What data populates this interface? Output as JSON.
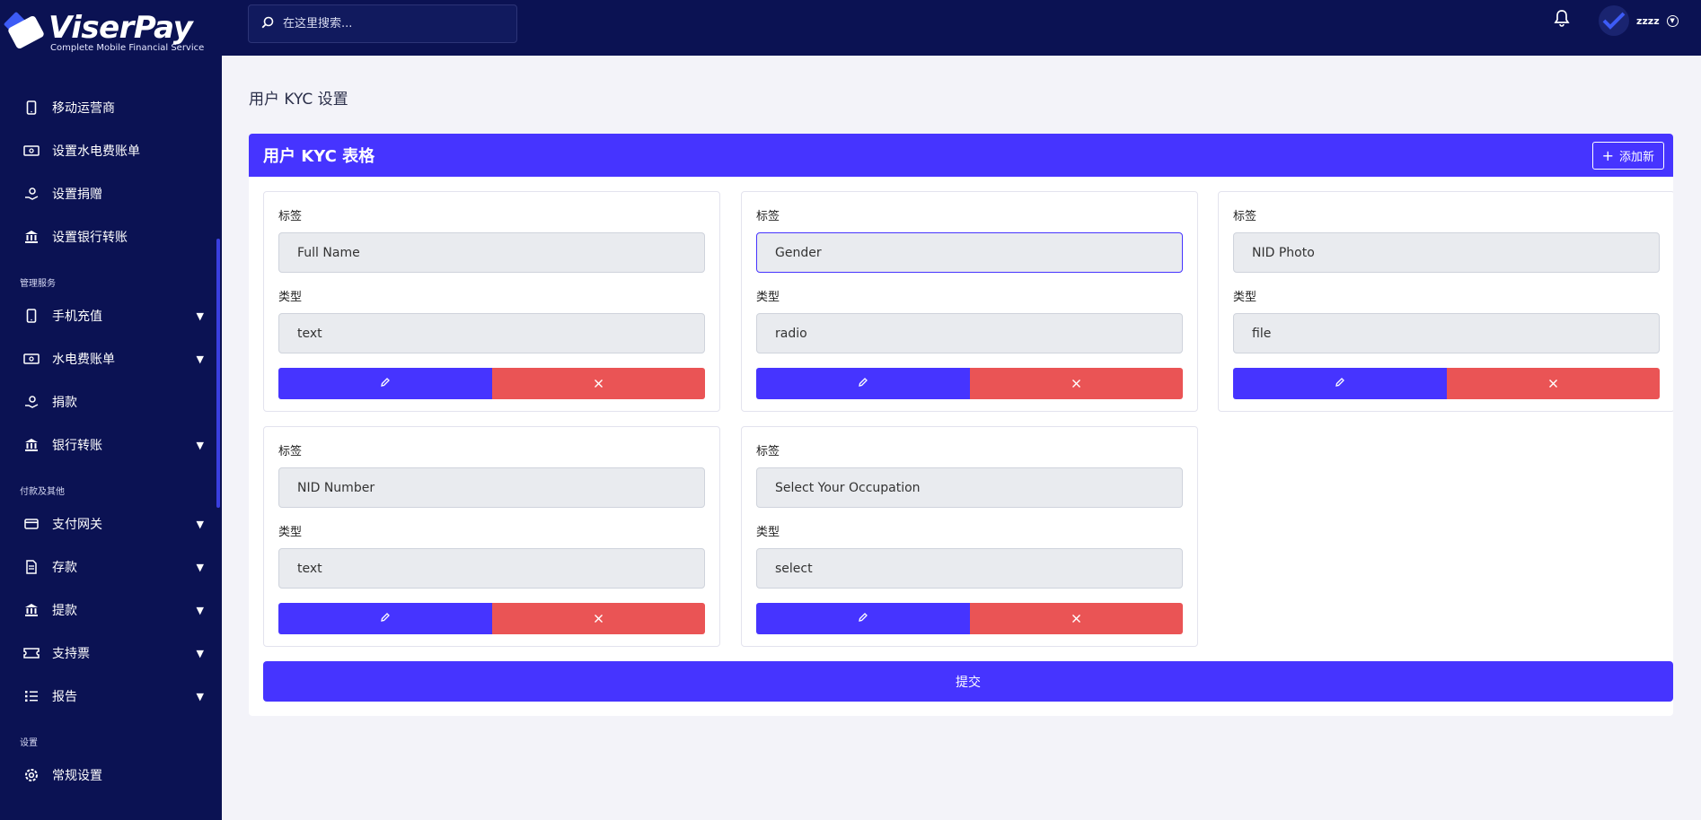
{
  "brand": {
    "name": "ViserPay",
    "tagline": "Complete Mobile Financial Service"
  },
  "sidebar": {
    "items_top": [
      {
        "label": "移动运营商",
        "icon": "mobile-icon"
      },
      {
        "label": "设置水电费账单",
        "icon": "bill-icon"
      },
      {
        "label": "设置捐赠",
        "icon": "donation-icon"
      },
      {
        "label": "设置银行转账",
        "icon": "bank-icon"
      }
    ],
    "section_manage": "管理服务",
    "items_manage": [
      {
        "label": "手机充值",
        "icon": "mobile-icon"
      },
      {
        "label": "水电费账单",
        "icon": "bill-icon"
      },
      {
        "label": "捐款",
        "icon": "donation-icon"
      },
      {
        "label": "银行转账",
        "icon": "bank-icon"
      }
    ],
    "section_payment": "付款及其他",
    "items_payment": [
      {
        "label": "支付网关",
        "icon": "credit-card-icon"
      },
      {
        "label": "存款",
        "icon": "deposit-icon"
      },
      {
        "label": "提款",
        "icon": "bank-icon"
      },
      {
        "label": "支持票",
        "icon": "ticket-icon"
      },
      {
        "label": "报告",
        "icon": "list-icon"
      }
    ],
    "section_settings": "设置",
    "items_settings": [
      {
        "label": "常规设置",
        "icon": "gear-icon"
      }
    ]
  },
  "topbar": {
    "search_placeholder": "在这里搜索...",
    "username": "zzzz"
  },
  "page": {
    "title": "用户 KYC 设置",
    "panel_title": "用户 KYC 表格",
    "add_new_label": "添加新",
    "submit_label": "提交"
  },
  "fields": [
    {
      "label_caption": "标签",
      "label_value": "Full Name",
      "type_caption": "类型",
      "type_value": "text"
    },
    {
      "label_caption": "标签",
      "label_value": "Gender",
      "type_caption": "类型",
      "type_value": "radio"
    },
    {
      "label_caption": "标签",
      "label_value": "NID Photo",
      "type_caption": "类型",
      "type_value": "file"
    },
    {
      "label_caption": "标签",
      "label_value": "NID Number",
      "type_caption": "类型",
      "type_value": "text"
    },
    {
      "label_caption": "标签",
      "label_value": "Select Your Occupation",
      "type_caption": "类型",
      "type_value": "select"
    }
  ]
}
